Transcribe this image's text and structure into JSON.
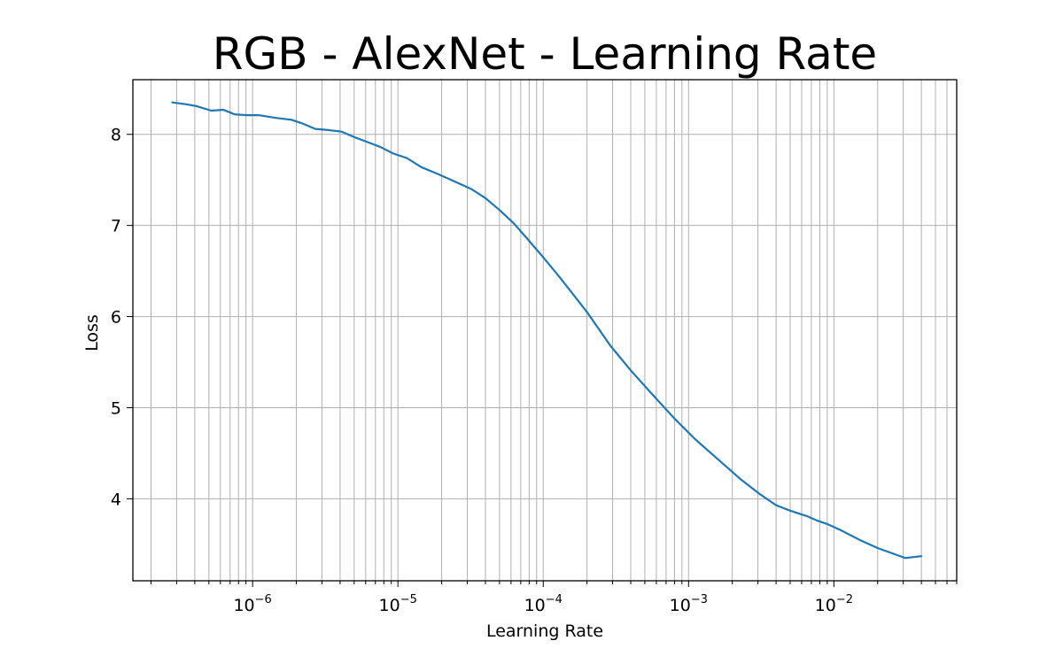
{
  "chart_data": {
    "type": "line",
    "title": "RGB - AlexNet - Learning Rate",
    "xlabel": "Learning Rate",
    "ylabel": "Loss",
    "xscale": "log",
    "xlim": [
      1.5e-07,
      0.07
    ],
    "ylim": [
      3.1,
      8.6
    ],
    "grid": "both (major and minor)",
    "line_color": "#1f77b4",
    "x_ticks": [
      {
        "base": "10",
        "exp": "−6",
        "value": 1e-06
      },
      {
        "base": "10",
        "exp": "−5",
        "value": 1e-05
      },
      {
        "base": "10",
        "exp": "−4",
        "value": 0.0001
      },
      {
        "base": "10",
        "exp": "−3",
        "value": 0.001
      },
      {
        "base": "10",
        "exp": "−2",
        "value": 0.01
      }
    ],
    "y_ticks": [
      "4",
      "5",
      "6",
      "7",
      "8"
    ],
    "series": [
      {
        "x": [
          2.8e-07,
          3.5e-07,
          4.1e-07,
          5.2e-07,
          6.3e-07,
          7.5e-07,
          9.2e-07,
          1.1e-06,
          1.45e-06,
          1.85e-06,
          2.2e-06,
          2.7e-06,
          3.2e-06,
          4.1e-06,
          5e-06,
          6.3e-06,
          7.6e-06,
          9.3e-06,
          1.15e-05,
          1.45e-05,
          1.85e-05,
          2.4e-05,
          3.2e-05,
          4e-05,
          5e-05,
          6.3e-05,
          8e-05,
          0.0001,
          0.00013,
          0.0002,
          0.00029,
          0.0004,
          0.00056,
          0.0008,
          0.0011,
          0.0016,
          0.0023,
          0.0031,
          0.004,
          0.005,
          0.0065,
          0.0077,
          0.0091,
          0.011,
          0.015,
          0.02,
          0.031,
          0.04
        ],
        "y": [
          8.35,
          8.33,
          8.31,
          8.26,
          8.27,
          8.22,
          8.21,
          8.21,
          8.18,
          8.16,
          8.12,
          8.06,
          8.05,
          8.03,
          7.97,
          7.91,
          7.86,
          7.79,
          7.74,
          7.64,
          7.57,
          7.49,
          7.4,
          7.3,
          7.17,
          7.02,
          6.83,
          6.65,
          6.43,
          6.05,
          5.68,
          5.41,
          5.15,
          4.88,
          4.66,
          4.43,
          4.21,
          4.05,
          3.93,
          3.87,
          3.81,
          3.76,
          3.72,
          3.66,
          3.55,
          3.46,
          3.35,
          3.37
        ]
      }
    ]
  }
}
